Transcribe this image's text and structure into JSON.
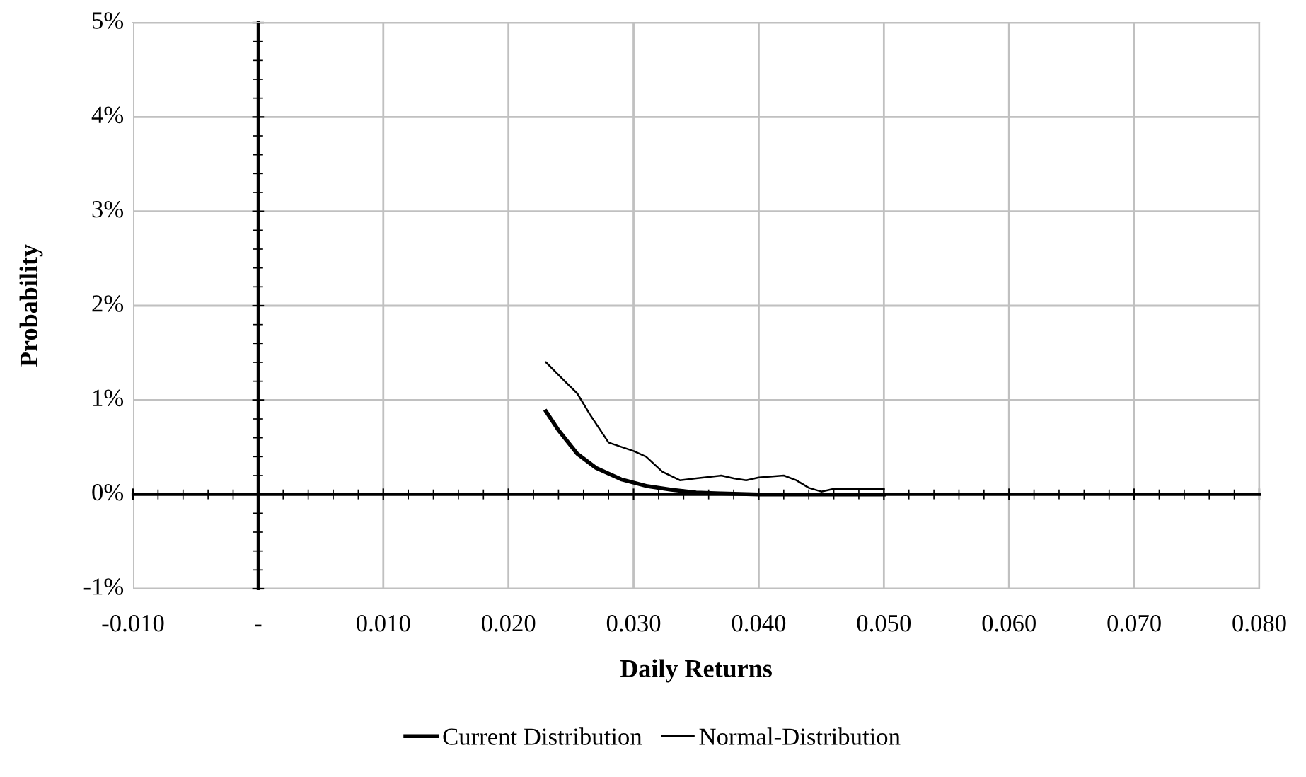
{
  "chart_data": {
    "type": "line",
    "xlabel": "Daily Returns",
    "ylabel": "Probability",
    "xlim": [
      -0.01,
      0.08
    ],
    "ylim": [
      -1,
      5
    ],
    "xticks": [
      {
        "value": -0.01,
        "label": "-0.010"
      },
      {
        "value": 0,
        "label": "-"
      },
      {
        "value": 0.01,
        "label": "0.010"
      },
      {
        "value": 0.02,
        "label": "0.020"
      },
      {
        "value": 0.03,
        "label": "0.030"
      },
      {
        "value": 0.04,
        "label": "0.040"
      },
      {
        "value": 0.05,
        "label": "0.050"
      },
      {
        "value": 0.06,
        "label": "0.060"
      },
      {
        "value": 0.07,
        "label": "0.070"
      },
      {
        "value": 0.08,
        "label": "0.080"
      }
    ],
    "yticks": [
      {
        "value": -1,
        "label": "-1%"
      },
      {
        "value": 0,
        "label": "0%"
      },
      {
        "value": 1,
        "label": "1%"
      },
      {
        "value": 2,
        "label": "2%"
      },
      {
        "value": 3,
        "label": "3%"
      },
      {
        "value": 4,
        "label": "4%"
      },
      {
        "value": 5,
        "label": "5%"
      }
    ],
    "grid": true,
    "legend": "bottom",
    "marker": "none",
    "series": [
      {
        "name": "Current Distribution",
        "color": "#000000",
        "x": [
          0.023,
          0.024,
          0.0255,
          0.027,
          0.029,
          0.031,
          0.033,
          0.035,
          0.037,
          0.04,
          0.045,
          0.05
        ],
        "values": [
          0.88,
          0.68,
          0.43,
          0.28,
          0.16,
          0.09,
          0.05,
          0.02,
          0.01,
          0.0,
          0.0,
          0.0
        ]
      },
      {
        "name": "Normal-Distribution",
        "color": "#000000",
        "x": [
          0.023,
          0.0245,
          0.0255,
          0.0265,
          0.028,
          0.03,
          0.031,
          0.0323,
          0.0337,
          0.035,
          0.037,
          0.038,
          0.039,
          0.04,
          0.042,
          0.043,
          0.044,
          0.045,
          0.046,
          0.05
        ],
        "values": [
          1.4,
          1.2,
          1.07,
          0.85,
          0.55,
          0.46,
          0.4,
          0.24,
          0.15,
          0.17,
          0.2,
          0.17,
          0.15,
          0.18,
          0.2,
          0.15,
          0.07,
          0.03,
          0.06,
          0.06
        ]
      }
    ]
  }
}
